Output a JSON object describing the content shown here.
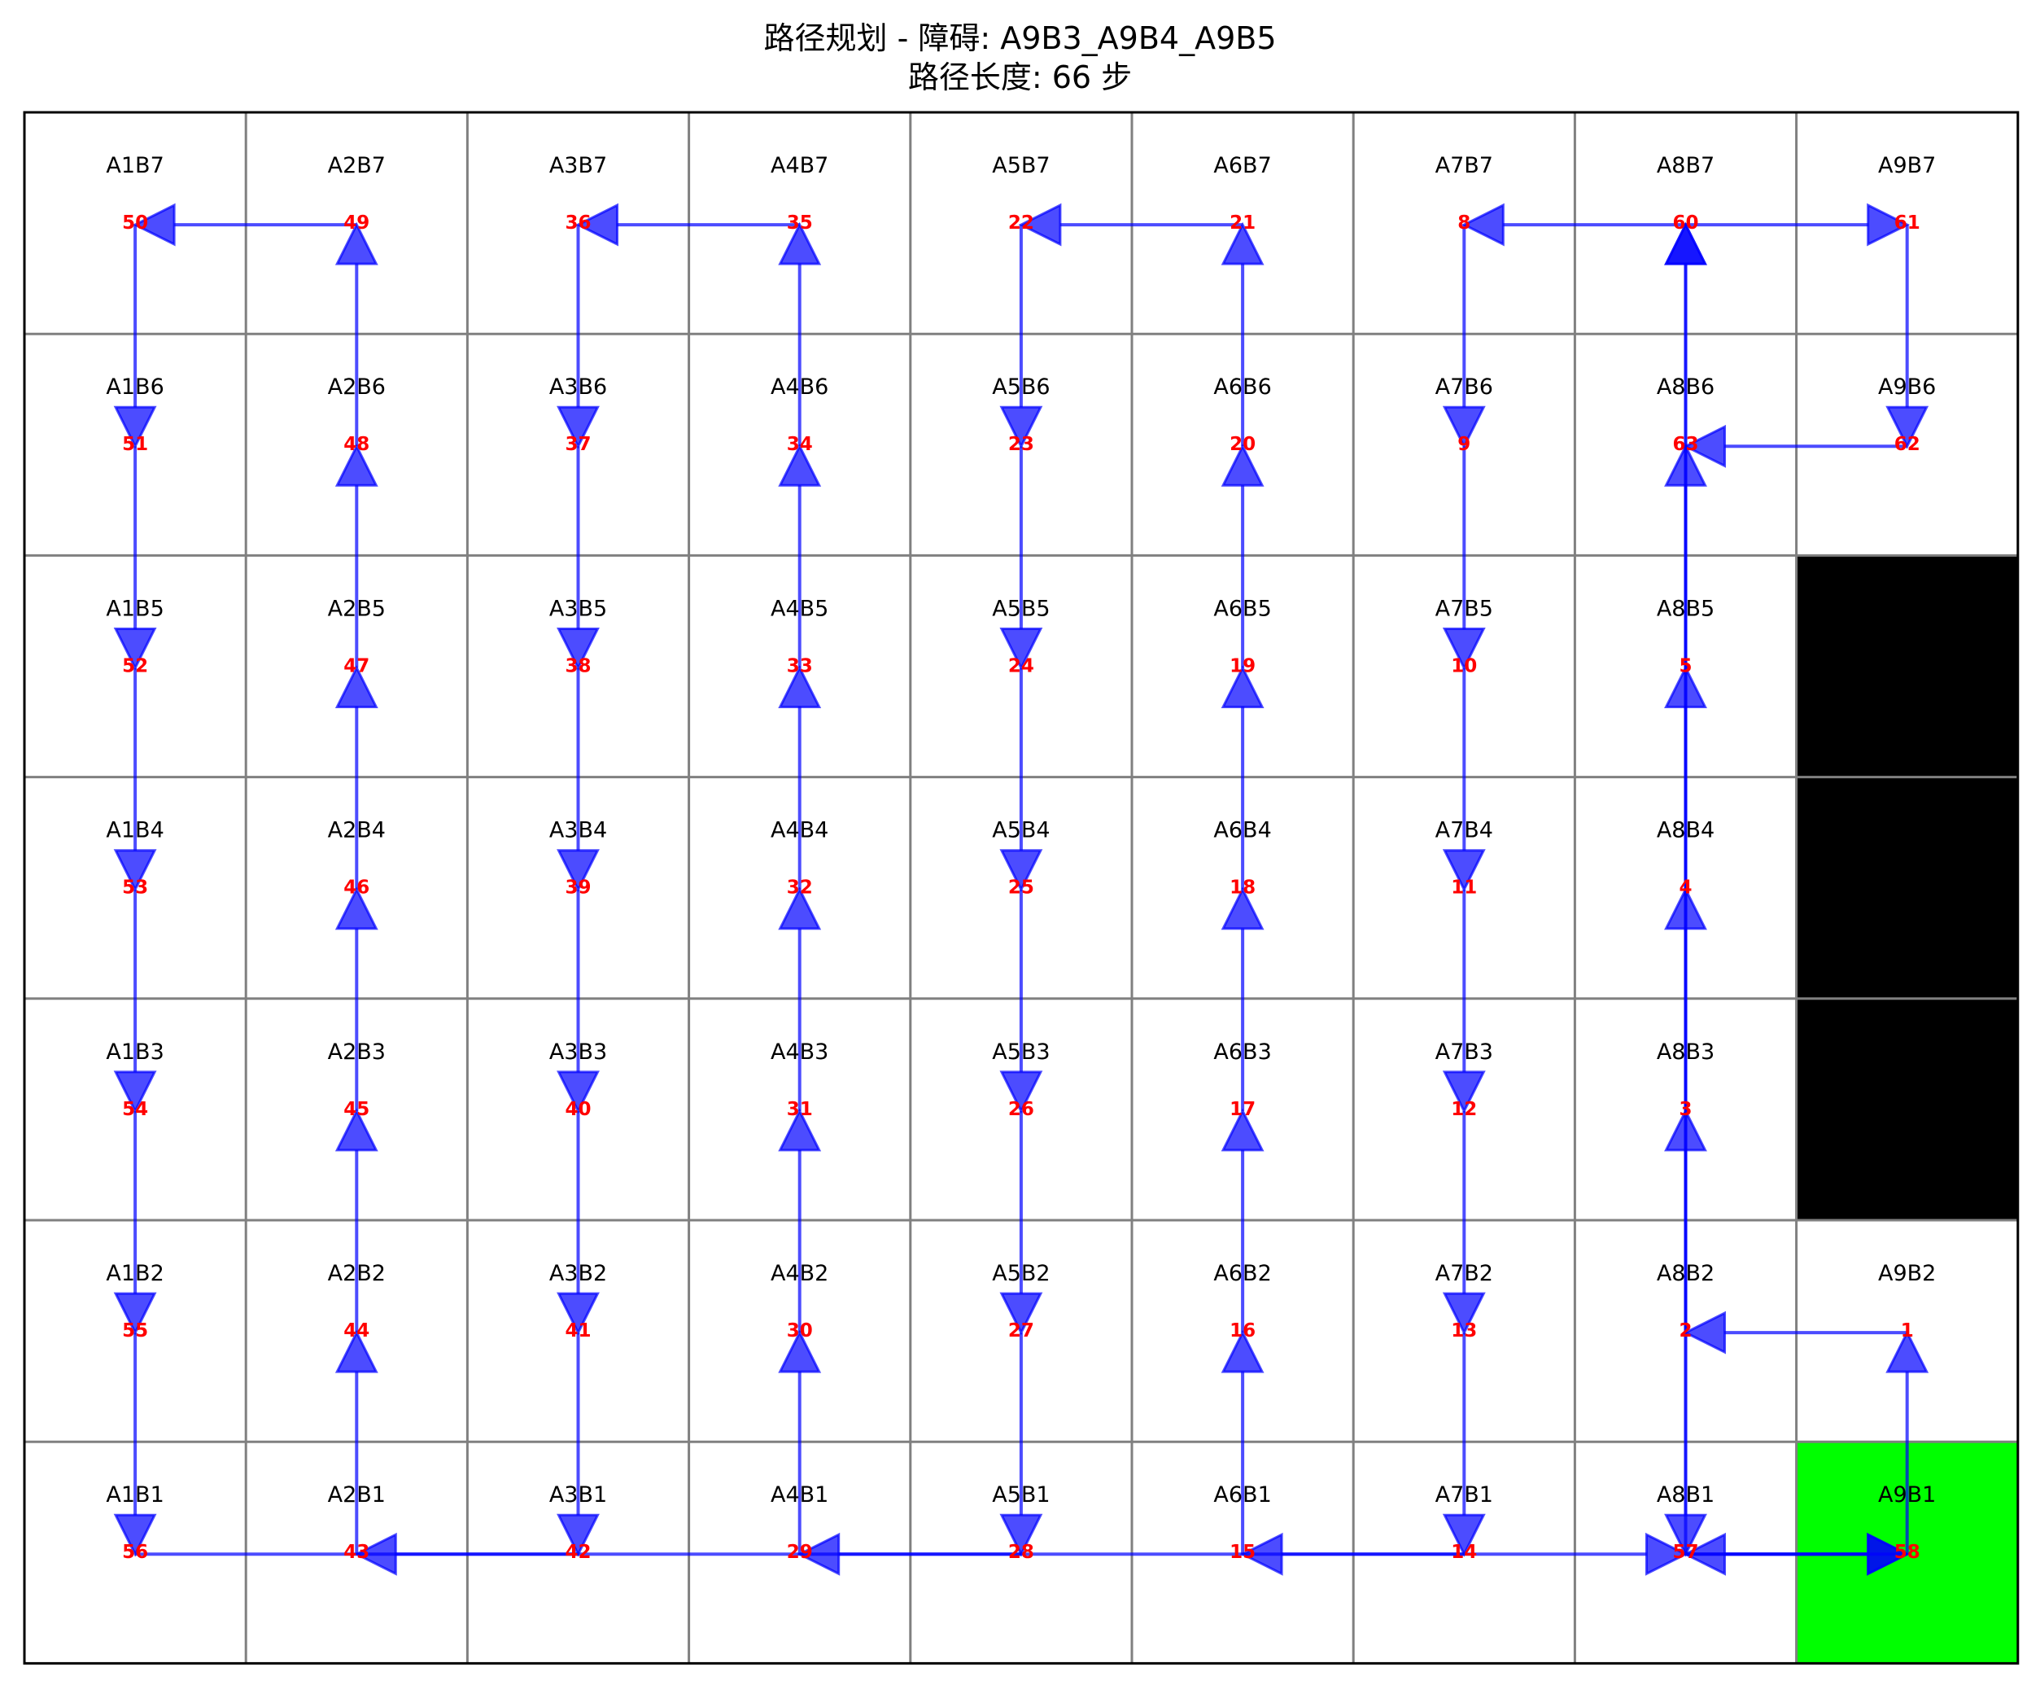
{
  "title": {
    "line1": "路径规划 - 障碍: A9B3_A9B4_A9B5",
    "line2": "路径长度: 66 步"
  },
  "colors": {
    "grid_line": "#808080",
    "border": "#000000",
    "obstacle": "#000000",
    "goal": "#00ff00",
    "arrow": "#0000ff",
    "step_number": "#ff0000",
    "cell_label": "#000000"
  },
  "grid": {
    "columns": 9,
    "rows": 7,
    "obstacles": [
      "A9B3",
      "A9B4",
      "A9B5"
    ],
    "highlighted": [
      "A9B1"
    ],
    "cells": [
      {
        "id": "A1B7",
        "label": "A1B7",
        "step": "50"
      },
      {
        "id": "A2B7",
        "label": "A2B7",
        "step": "49"
      },
      {
        "id": "A3B7",
        "label": "A3B7",
        "step": "36"
      },
      {
        "id": "A4B7",
        "label": "A4B7",
        "step": "35"
      },
      {
        "id": "A5B7",
        "label": "A5B7",
        "step": "22"
      },
      {
        "id": "A6B7",
        "label": "A6B7",
        "step": "21"
      },
      {
        "id": "A7B7",
        "label": "A7B7",
        "step": "8"
      },
      {
        "id": "A8B7",
        "label": "A8B7",
        "step": "60"
      },
      {
        "id": "A9B7",
        "label": "A9B7",
        "step": "61"
      },
      {
        "id": "A1B6",
        "label": "A1B6",
        "step": "51"
      },
      {
        "id": "A2B6",
        "label": "A2B6",
        "step": "48"
      },
      {
        "id": "A3B6",
        "label": "A3B6",
        "step": "37"
      },
      {
        "id": "A4B6",
        "label": "A4B6",
        "step": "34"
      },
      {
        "id": "A5B6",
        "label": "A5B6",
        "step": "23"
      },
      {
        "id": "A6B6",
        "label": "A6B6",
        "step": "20"
      },
      {
        "id": "A7B6",
        "label": "A7B6",
        "step": "9"
      },
      {
        "id": "A8B6",
        "label": "A8B6",
        "step": "63"
      },
      {
        "id": "A9B6",
        "label": "A9B6",
        "step": "62"
      },
      {
        "id": "A1B5",
        "label": "A1B5",
        "step": "52"
      },
      {
        "id": "A2B5",
        "label": "A2B5",
        "step": "47"
      },
      {
        "id": "A3B5",
        "label": "A3B5",
        "step": "38"
      },
      {
        "id": "A4B5",
        "label": "A4B5",
        "step": "33"
      },
      {
        "id": "A5B5",
        "label": "A5B5",
        "step": "24"
      },
      {
        "id": "A6B5",
        "label": "A6B5",
        "step": "19"
      },
      {
        "id": "A7B5",
        "label": "A7B5",
        "step": "10"
      },
      {
        "id": "A8B5",
        "label": "A8B5",
        "step": "5"
      },
      {
        "id": "A1B4",
        "label": "A1B4",
        "step": "53"
      },
      {
        "id": "A2B4",
        "label": "A2B4",
        "step": "46"
      },
      {
        "id": "A3B4",
        "label": "A3B4",
        "step": "39"
      },
      {
        "id": "A4B4",
        "label": "A4B4",
        "step": "32"
      },
      {
        "id": "A5B4",
        "label": "A5B4",
        "step": "25"
      },
      {
        "id": "A6B4",
        "label": "A6B4",
        "step": "18"
      },
      {
        "id": "A7B4",
        "label": "A7B4",
        "step": "11"
      },
      {
        "id": "A8B4",
        "label": "A8B4",
        "step": "4"
      },
      {
        "id": "A1B3",
        "label": "A1B3",
        "step": "54"
      },
      {
        "id": "A2B3",
        "label": "A2B3",
        "step": "45"
      },
      {
        "id": "A3B3",
        "label": "A3B3",
        "step": "40"
      },
      {
        "id": "A4B3",
        "label": "A4B3",
        "step": "31"
      },
      {
        "id": "A5B3",
        "label": "A5B3",
        "step": "26"
      },
      {
        "id": "A6B3",
        "label": "A6B3",
        "step": "17"
      },
      {
        "id": "A7B3",
        "label": "A7B3",
        "step": "12"
      },
      {
        "id": "A8B3",
        "label": "A8B3",
        "step": "3"
      },
      {
        "id": "A1B2",
        "label": "A1B2",
        "step": "55"
      },
      {
        "id": "A2B2",
        "label": "A2B2",
        "step": "44"
      },
      {
        "id": "A3B2",
        "label": "A3B2",
        "step": "41"
      },
      {
        "id": "A4B2",
        "label": "A4B2",
        "step": "30"
      },
      {
        "id": "A5B2",
        "label": "A5B2",
        "step": "27"
      },
      {
        "id": "A6B2",
        "label": "A6B2",
        "step": "16"
      },
      {
        "id": "A7B2",
        "label": "A7B2",
        "step": "13"
      },
      {
        "id": "A8B2",
        "label": "A8B2",
        "step": "2"
      },
      {
        "id": "A9B2",
        "label": "A9B2",
        "step": "1"
      },
      {
        "id": "A1B1",
        "label": "A1B1",
        "step": "56"
      },
      {
        "id": "A2B1",
        "label": "A2B1",
        "step": "43"
      },
      {
        "id": "A3B1",
        "label": "A3B1",
        "step": "42"
      },
      {
        "id": "A4B1",
        "label": "A4B1",
        "step": "29"
      },
      {
        "id": "A5B1",
        "label": "A5B1",
        "step": "28"
      },
      {
        "id": "A6B1",
        "label": "A6B1",
        "step": "15"
      },
      {
        "id": "A7B1",
        "label": "A7B1",
        "step": "14"
      },
      {
        "id": "A8B1",
        "label": "A8B1",
        "step": "57"
      },
      {
        "id": "A9B1",
        "label": "A9B1",
        "step": "58"
      }
    ]
  },
  "path": [
    "A9B1",
    "A9B2",
    "A8B2",
    "A8B3",
    "A8B4",
    "A8B5",
    "A8B6",
    "A8B7",
    "A7B7",
    "A7B6",
    "A7B5",
    "A7B4",
    "A7B3",
    "A7B2",
    "A7B1",
    "A6B1",
    "A6B2",
    "A6B3",
    "A6B4",
    "A6B5",
    "A6B6",
    "A6B7",
    "A5B7",
    "A5B6",
    "A5B5",
    "A5B4",
    "A5B3",
    "A5B2",
    "A5B1",
    "A4B1",
    "A4B2",
    "A4B3",
    "A4B4",
    "A4B5",
    "A4B6",
    "A4B7",
    "A3B7",
    "A3B6",
    "A3B5",
    "A3B4",
    "A3B3",
    "A3B2",
    "A3B1",
    "A2B1",
    "A2B2",
    "A2B3",
    "A2B4",
    "A2B5",
    "A2B6",
    "A2B7",
    "A1B7",
    "A1B6",
    "A1B5",
    "A1B4",
    "A1B3",
    "A1B2",
    "A1B1",
    "A8B1",
    "A9B1",
    "A8B1",
    "A8B7",
    "A9B7",
    "A9B6",
    "A8B6",
    "A8B1",
    "A9B1"
  ]
}
